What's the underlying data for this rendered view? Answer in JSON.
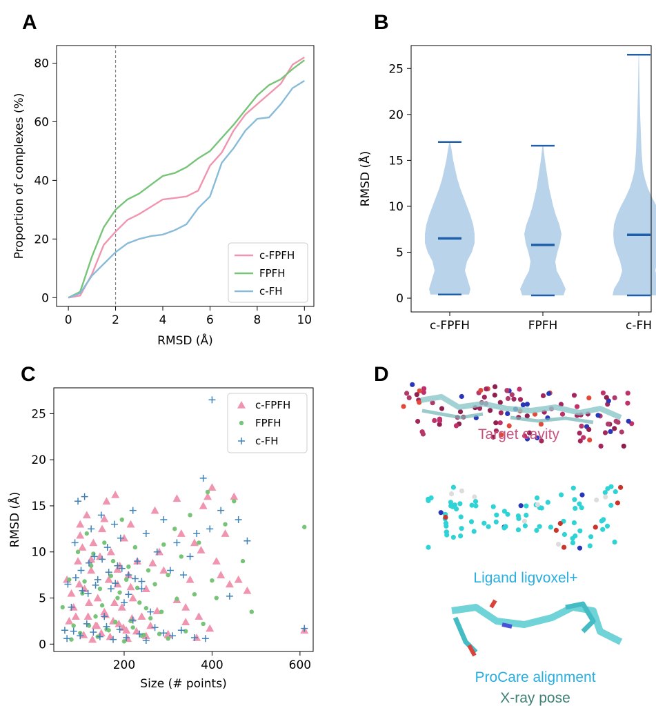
{
  "panels": {
    "a": "A",
    "b": "B",
    "c": "C",
    "d": "D"
  },
  "colors": {
    "c_fpfh": "#f095b0",
    "fpfh": "#77c478",
    "c_fh": "#88bbd8",
    "violin": "#b9d3ea",
    "violin_line": "#1f5fa8",
    "c_fh_marker": "#3f82b8",
    "cavity": "#c8527e",
    "ligand": "#29aee0",
    "procare": "#29aee0",
    "xray": "#3d7f74"
  },
  "chart_data": [
    {
      "type": "line",
      "panel": "A",
      "xlabel": "RMSD (Å)",
      "ylabel": "Proportion of complexes (%)",
      "xlim": [
        -0.5,
        10.4
      ],
      "ylim": [
        -3,
        86
      ],
      "xticks": [
        0,
        2,
        4,
        6,
        8,
        10
      ],
      "yticks": [
        0,
        20,
        40,
        60,
        80
      ],
      "vline_x": 2,
      "legend_position": "lower-right",
      "x": [
        0,
        0.5,
        1,
        1.5,
        2,
        2.5,
        3,
        3.5,
        4,
        4.5,
        5,
        5.5,
        6,
        6.5,
        7,
        7.5,
        8,
        8.5,
        9,
        9.5,
        10
      ],
      "series": [
        {
          "name": "c-FPFH",
          "color": "#f095b0",
          "values": [
            0,
            0.7,
            8,
            18,
            22.5,
            26.5,
            28.5,
            31,
            33.5,
            34,
            34.5,
            36.5,
            45,
            49.5,
            57,
            62.5,
            66,
            69.5,
            73,
            79.5,
            82
          ]
        },
        {
          "name": "FPFH",
          "color": "#77c478",
          "values": [
            0,
            2,
            14,
            24,
            30,
            33.5,
            35.5,
            38.5,
            41.5,
            42.5,
            44.5,
            47.5,
            50,
            54.5,
            59,
            64,
            69,
            72.5,
            74.5,
            78,
            81
          ]
        },
        {
          "name": "c-FH",
          "color": "#88bbd8",
          "values": [
            0,
            1.5,
            7.5,
            11.5,
            15.5,
            18.5,
            20,
            21,
            21.5,
            23,
            25,
            30.5,
            34.5,
            46,
            51,
            57,
            61,
            61.5,
            66,
            71.5,
            74
          ]
        }
      ]
    },
    {
      "type": "violin",
      "panel": "B",
      "ylabel": "RMSD (Å)",
      "ylim": [
        -1.5,
        27.5
      ],
      "yticks": [
        0,
        5,
        10,
        15,
        20,
        25
      ],
      "categories": [
        "c-FPFH",
        "FPFH",
        "c-FH"
      ],
      "series": [
        {
          "name": "c-FPFH",
          "min": 0.4,
          "max": 17.0,
          "median": 6.5
        },
        {
          "name": "FPFH",
          "min": 0.3,
          "max": 16.6,
          "median": 5.8
        },
        {
          "name": "c-FH",
          "min": 0.3,
          "max": 26.5,
          "median": 6.9
        }
      ]
    },
    {
      "type": "scatter",
      "panel": "C",
      "xlabel": "Size (# points)",
      "ylabel": "RMSD (Å)",
      "xlim": [
        40,
        630
      ],
      "ylim": [
        -0.8,
        27.8
      ],
      "xticks": [
        200,
        400,
        600
      ],
      "yticks": [
        0,
        5,
        10,
        15,
        20,
        25
      ],
      "legend_position": "upper-right",
      "series": [
        {
          "name": "c-FPFH",
          "marker": "triangle",
          "color": "#f095b0",
          "x": [
            70,
            80,
            90,
            95,
            100,
            105,
            110,
            115,
            120,
            125,
            130,
            135,
            140,
            145,
            150,
            155,
            160,
            165,
            170,
            175,
            180,
            185,
            190,
            195,
            200,
            205,
            210,
            215,
            220,
            230,
            240,
            250,
            260,
            270,
            280,
            290,
            300,
            320,
            330,
            340,
            350,
            360,
            370,
            380,
            390,
            400,
            410,
            420,
            430,
            440,
            450,
            460,
            480,
            610,
            75,
            85,
            98,
            108,
            118,
            128,
            138,
            148,
            158,
            168,
            178,
            188,
            198,
            208,
            218,
            228,
            250,
            275,
            300,
            340,
            365,
            395,
            100,
            125,
            155,
            185,
            215,
            265,
            320,
            375
          ],
          "y": [
            7,
            5.5,
            3,
            9,
            13,
            10.5,
            6,
            14,
            4.5,
            8,
            11,
            2,
            5,
            9.5,
            12.5,
            3.5,
            15.5,
            7,
            10,
            2.5,
            16.2,
            6.5,
            8.5,
            4,
            11.5,
            1.5,
            7.5,
            13,
            5,
            9,
            3,
            6,
            2,
            14.5,
            10,
            8,
            1,
            15.8,
            12,
            4,
            7,
            11,
            3,
            15,
            16,
            17,
            9,
            7.5,
            12,
            6.5,
            16,
            7,
            5.8,
            1.5,
            2.5,
            4,
            6.5,
            1,
            3,
            0.5,
            2,
            1.2,
            3.2,
            0.8,
            4.5,
            2.2,
            1.8,
            0.6,
            2.8,
            1.4,
            0.9,
            3.6,
            1.1,
            2.4,
            0.7,
            1.7,
            11.8,
            9.2,
            13.6,
            8.1,
            6.2,
            8.8,
            4.8,
            10.2
          ]
        },
        {
          "name": "FPFH",
          "color": "#77c478",
          "marker": "circle",
          "x": [
            60,
            75,
            85,
            95,
            105,
            115,
            125,
            135,
            145,
            155,
            165,
            175,
            185,
            195,
            205,
            215,
            225,
            235,
            245,
            255,
            270,
            285,
            300,
            315,
            330,
            350,
            370,
            390,
            410,
            430,
            450,
            470,
            490,
            610,
            80,
            100,
            120,
            140,
            160,
            180,
            200,
            220,
            240,
            260,
            280,
            300,
            340,
            380,
            110,
            130,
            150,
            170,
            190,
            210,
            230,
            250,
            290,
            320,
            360,
            400
          ],
          "y": [
            4,
            7,
            2,
            10,
            5.5,
            12,
            8.5,
            3,
            6,
            11,
            1.5,
            9,
            5,
            13.5,
            7,
            2.5,
            10.5,
            4.5,
            1,
            8,
            6.5,
            3.5,
            7.5,
            12.5,
            9.5,
            14,
            11,
            16.5,
            5,
            13,
            15.5,
            9,
            3.5,
            12.7,
            0.5,
            1.2,
            2,
            0.8,
            1.6,
            2.4,
            0.3,
            1.8,
            0.9,
            2.8,
            1.1,
            0.6,
            1.4,
            2.2,
            6.8,
            9.8,
            4.2,
            7.4,
            5.6,
            8.4,
            6.1,
            3.9,
            10.8,
            4.9,
            5.4,
            6.9
          ]
        },
        {
          "name": "c-FH",
          "color": "#3f82b8",
          "marker": "plus",
          "x": [
            65,
            72,
            80,
            88,
            95,
            102,
            110,
            118,
            125,
            132,
            140,
            148,
            155,
            162,
            170,
            178,
            185,
            192,
            200,
            210,
            220,
            230,
            240,
            250,
            260,
            275,
            290,
            305,
            320,
            335,
            350,
            365,
            380,
            395,
            400,
            420,
            440,
            460,
            480,
            610,
            70,
            85,
            100,
            115,
            130,
            145,
            160,
            175,
            190,
            205,
            220,
            235,
            250,
            270,
            290,
            310,
            330,
            360,
            385,
            90,
            105,
            120,
            135,
            150,
            165,
            180,
            195,
            210,
            225,
            240
          ],
          "y": [
            1.5,
            6.5,
            4,
            11,
            15.5,
            8,
            16,
            5.5,
            12.5,
            9.5,
            7,
            14,
            3,
            10.5,
            6,
            13,
            8.5,
            11.5,
            4.5,
            7.5,
            14.5,
            9,
            6,
            12,
            3.5,
            10,
            13.5,
            8,
            11,
            7.5,
            9.5,
            12,
            18,
            12.5,
            26.5,
            14.5,
            5.2,
            13.5,
            11.2,
            1.7,
            0.6,
            1.4,
            0.9,
            2.2,
            1.3,
            0.8,
            1.9,
            0.5,
            1.6,
            0.7,
            2.6,
            1.1,
            0.4,
            1.8,
            1.2,
            0.9,
            1.5,
            0.7,
            0.6,
            7.2,
            5.8,
            8.8,
            6.4,
            9.2,
            7.8,
            6.6,
            8.2,
            5.4,
            7.1,
            6.8
          ]
        }
      ]
    }
  ],
  "panel_d": {
    "labels": {
      "cavity": "Target cavity",
      "ligand": "Ligand ligvoxel+",
      "procare": "ProCare alignment",
      "xray": "X-ray pose"
    }
  }
}
